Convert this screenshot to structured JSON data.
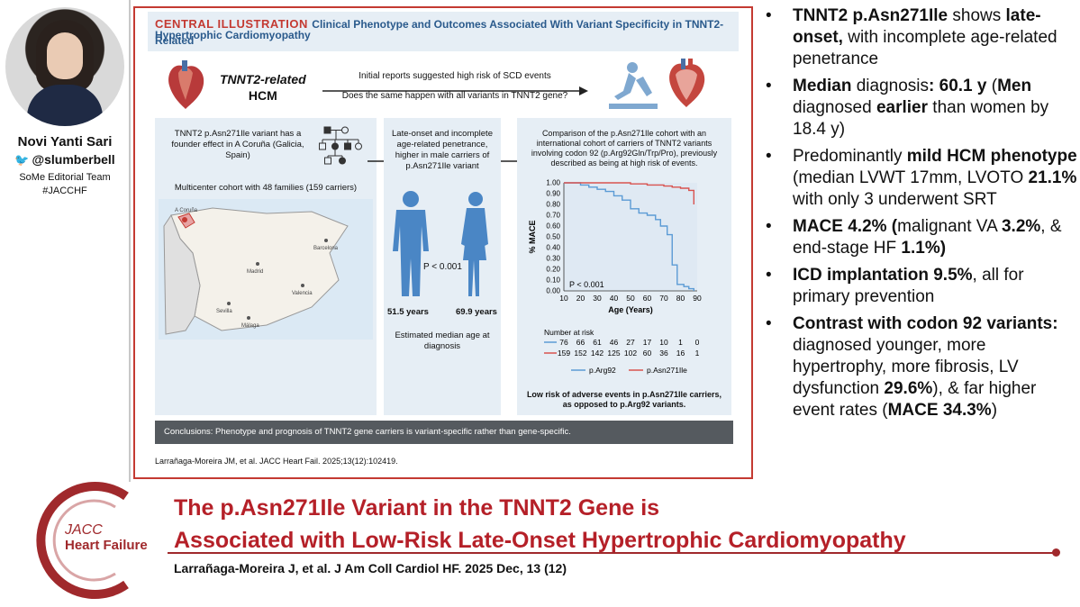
{
  "profile": {
    "name": "Novi Yanti Sari",
    "handle": "@slumberbell",
    "team": "SoMe Editorial Team",
    "hashtag": "#JACCHF"
  },
  "illustration": {
    "label": "CENTRAL ILLUSTRATION",
    "title": "Clinical Phenotype and Outcomes Associated With Variant Specificity in TNNT2-Related",
    "subtitle": "Hypertrophic Cardiomyopathy",
    "hcm_title_1": "TNNT2-related",
    "hcm_title_2": "HCM",
    "initial_reports": "Initial reports suggested high risk of SCD events",
    "same_question": "Does the same happen with all variants in TNNT2 gene?",
    "founder_text": "TNNT2 p.Asn271Ile variant has a founder effect in A Coruña (Galicia, Spain)",
    "cohort_text": "Multicenter cohort with 48 families (159 carriers)",
    "map_labels": [
      "A Coruña",
      "Madrid",
      "Barcelona",
      "Valencia",
      "Sevilla",
      "Málaga"
    ],
    "late_onset_text": "Late-onset and incomplete age-related penetrance, higher in male carriers of p.Asn271Ile variant",
    "p_value_mid": "P < 0.001",
    "age_men": "51.5 years",
    "age_women": "69.9 years",
    "estimated_text": "Estimated median age at diagnosis",
    "comparison_text": "Comparison of the p.Asn271Ile cohort with an international cohort of carriers of TNNT2 variants involving codon 92 (p.Arg92Gln/Trp/Pro), previously described as being at high risk of events.",
    "number_at_risk_label": "Number at risk",
    "risk_row_arg92": [
      "76",
      "66",
      "61",
      "46",
      "27",
      "17",
      "10",
      "1",
      "0"
    ],
    "risk_row_asn271": [
      "159",
      "152",
      "142",
      "125",
      "102",
      "60",
      "36",
      "16",
      "1"
    ],
    "legend_arg92": "p.Arg92",
    "legend_asn271": "p.Asn271Ile",
    "lowrisk_text": "Low risk of adverse events in p.Asn271Ile carriers, as opposed to p.Arg92 variants.",
    "conclusions": "Conclusions: Phenotype and prognosis of TNNT2 gene carriers is variant-specific rather than gene-specific.",
    "citation": "Larrañaga-Moreira JM, et al. JACC Heart Fail. 2025;13(12):102419."
  },
  "chart_data": {
    "type": "line",
    "xlabel": "Age (Years)",
    "ylabel": "% MACE",
    "x_ticks": [
      "10",
      "20",
      "30",
      "40",
      "50",
      "60",
      "70",
      "80",
      "90"
    ],
    "y_ticks": [
      "0.00",
      "0.10",
      "0.20",
      "0.30",
      "0.40",
      "0.50",
      "0.60",
      "0.70",
      "0.80",
      "0.90",
      "1.00"
    ],
    "xlim": [
      10,
      90
    ],
    "ylim": [
      0,
      1
    ],
    "annotation": "P < 0.001",
    "series": [
      {
        "name": "p.Arg92",
        "color": "#5b9bd5",
        "x": [
          10,
          20,
          25,
          30,
          35,
          40,
          45,
          50,
          55,
          60,
          65,
          68,
          72,
          75,
          78,
          82,
          85,
          88
        ],
        "y": [
          1.0,
          0.98,
          0.96,
          0.94,
          0.92,
          0.88,
          0.84,
          0.76,
          0.72,
          0.7,
          0.66,
          0.6,
          0.52,
          0.24,
          0.06,
          0.04,
          0.02,
          0.0
        ]
      },
      {
        "name": "p.Asn271Ile",
        "color": "#d9534f",
        "x": [
          10,
          40,
          50,
          60,
          70,
          75,
          80,
          85,
          88
        ],
        "y": [
          1.0,
          1.0,
          0.99,
          0.98,
          0.97,
          0.96,
          0.95,
          0.93,
          0.8
        ]
      }
    ]
  },
  "bullets": [
    {
      "parts": [
        {
          "b": "TNNT2 p.Asn271Ile"
        },
        {
          "t": " shows "
        },
        {
          "b": "late-onset,"
        },
        {
          "t": " with incomplete age-related penetrance"
        }
      ]
    },
    {
      "parts": [
        {
          "b": "Median"
        },
        {
          "t": " diagnosis"
        },
        {
          "b": ": 60.1 y"
        },
        {
          "t": " ("
        },
        {
          "b": "Men"
        },
        {
          "t": " diagnosed "
        },
        {
          "b": "earlier"
        },
        {
          "t": " than women by 18.4 y)"
        }
      ]
    },
    {
      "parts": [
        {
          "t": "Predominantly "
        },
        {
          "b": "mild HCM phenotype"
        },
        {
          "t": " (median LVWT 17mm, LVOTO "
        },
        {
          "b": "21.1%"
        },
        {
          "t": " with only 3 underwent SRT"
        }
      ]
    },
    {
      "parts": [
        {
          "b": "MACE 4.2% ("
        },
        {
          "t": "malignant VA "
        },
        {
          "b": "3.2%"
        },
        {
          "t": ", & end-stage HF "
        },
        {
          "b": "1.1%)"
        }
      ]
    },
    {
      "parts": [
        {
          "b": "ICD implantation 9.5%"
        },
        {
          "t": ", all for primary prevention"
        }
      ]
    },
    {
      "parts": [
        {
          "b": "Contrast with codon 92 variants:"
        },
        {
          "t": " diagnosed younger, more hypertrophy, more fibrosis, LV dysfunction "
        },
        {
          "b": "29.6%"
        },
        {
          "t": "), & far higher event rates ("
        },
        {
          "b": "MACE 34.3%"
        },
        {
          "t": ")"
        }
      ]
    }
  ],
  "logo": {
    "jacc": "JACC",
    "heart_failure": "Heart Failure"
  },
  "main_title": {
    "line1": "The p.Asn271Ile Variant in the TNNT2 Gene is",
    "line2": "Associated with Low-Risk Late-Onset Hypertrophic Cardiomyopathy"
  },
  "bottom_citation": "Larrañaga-Moreira J, et al. J Am Coll Cardiol HF. 2025 Dec, 13 (12)"
}
